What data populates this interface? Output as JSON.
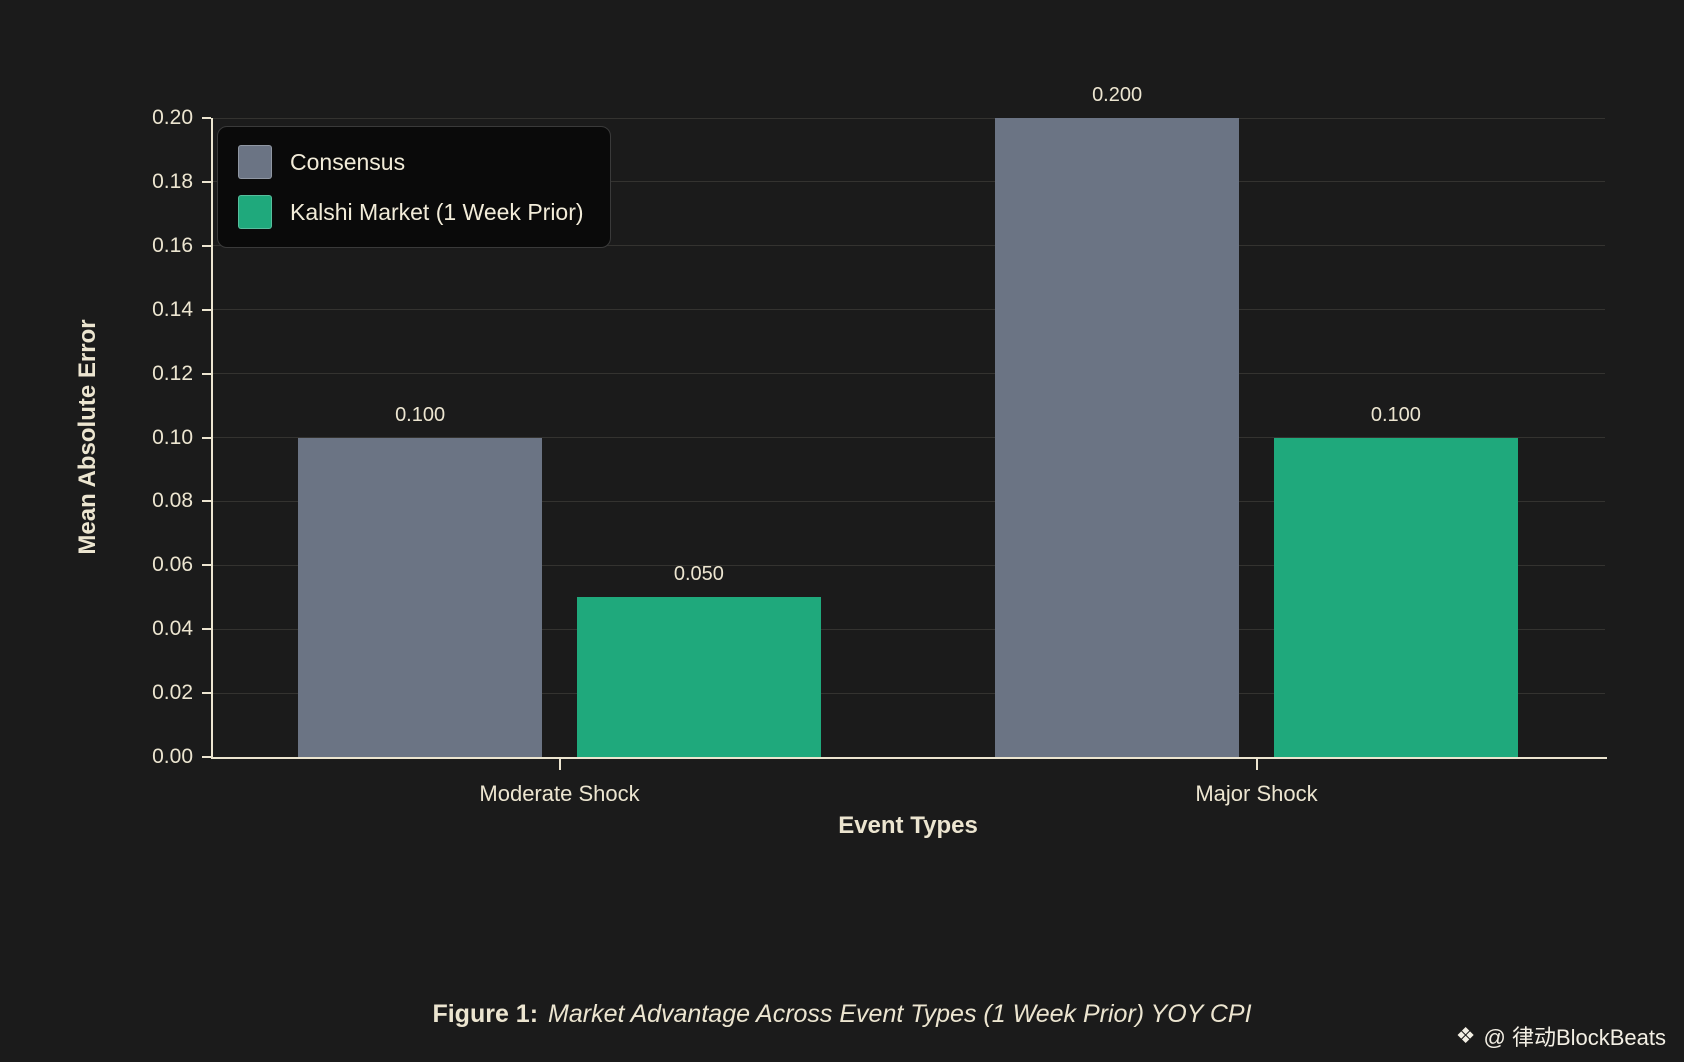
{
  "colors": {
    "background": "#1b1b1b",
    "axis_text": "#ece5d0",
    "grid": "rgba(236,229,208,0.12)",
    "legend_background": "#0a0a0a"
  },
  "chart_data": {
    "type": "bar",
    "title": "",
    "categories": [
      "Moderate Shock",
      "Major Shock"
    ],
    "series": [
      {
        "name": "Consensus",
        "color": "#6b7484",
        "values": [
          0.1,
          0.2
        ],
        "value_labels": [
          "0.100",
          "0.200"
        ]
      },
      {
        "name": "Kalshi Market (1 Week Prior)",
        "color": "#1fa97c",
        "values": [
          0.05,
          0.1
        ],
        "value_labels": [
          "0.050",
          "0.100"
        ]
      }
    ],
    "xlabel": "Event Types",
    "ylabel": "Mean Absolute Error",
    "ylim": [
      0,
      0.2
    ],
    "ytick_step": 0.02,
    "ytick_labels": [
      "0.00",
      "0.02",
      "0.04",
      "0.06",
      "0.08",
      "0.10",
      "0.12",
      "0.14",
      "0.16",
      "0.18",
      "0.20"
    ],
    "grid": true,
    "legend_position": "upper-left"
  },
  "caption": {
    "prefix": "Figure 1:",
    "text": "Market Advantage Across Event Types (1 Week Prior) YOY CPI"
  },
  "watermark": {
    "icon": "❖",
    "text": "@ 律动BlockBeats"
  }
}
